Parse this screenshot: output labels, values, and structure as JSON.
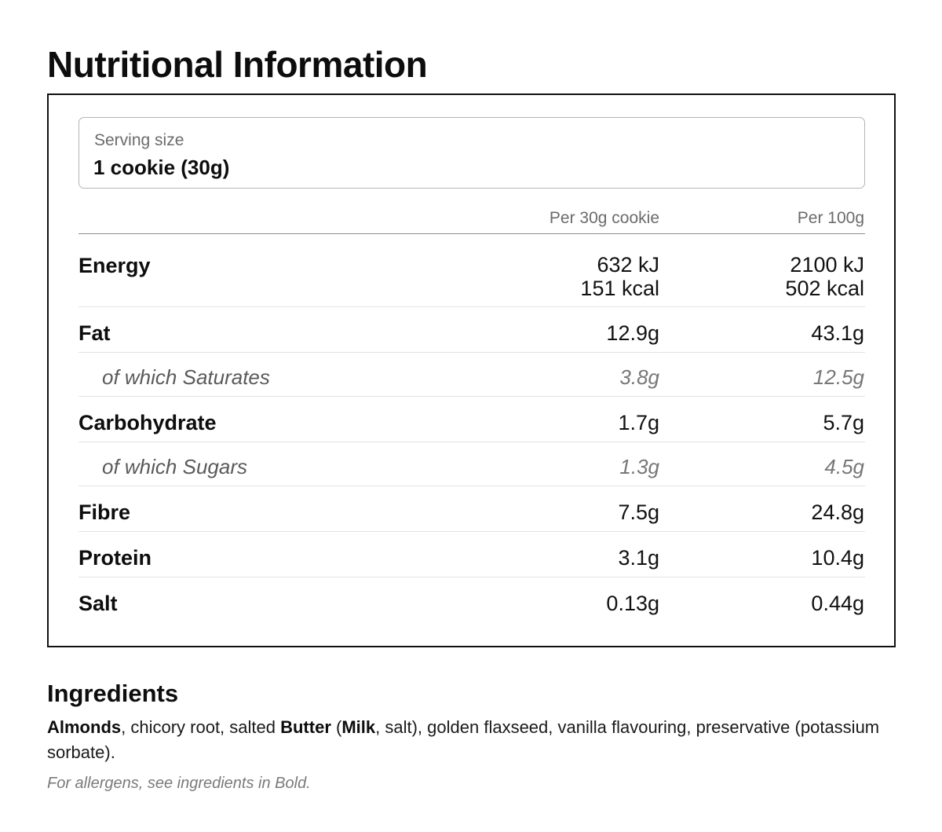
{
  "title": "Nutritional Information",
  "serving": {
    "label": "Serving size",
    "value": "1 cookie (30g)"
  },
  "columns": {
    "per_serving": "Per 30g cookie",
    "per_100g": "Per 100g"
  },
  "rows": [
    {
      "name": "Energy",
      "per_serving": "632 kJ",
      "per_serving_2": "151 kcal",
      "per_100g": "2100 kJ",
      "per_100g_2": "502 kcal",
      "sub": false
    },
    {
      "name": "Fat",
      "per_serving": "12.9g",
      "per_100g": "43.1g",
      "sub": false
    },
    {
      "name": "of which Saturates",
      "per_serving": "3.8g",
      "per_100g": "12.5g",
      "sub": true
    },
    {
      "name": "Carbohydrate",
      "per_serving": "1.7g",
      "per_100g": "5.7g",
      "sub": false
    },
    {
      "name": "of which Sugars",
      "per_serving": "1.3g",
      "per_100g": "4.5g",
      "sub": true
    },
    {
      "name": "Fibre",
      "per_serving": "7.5g",
      "per_100g": "24.8g",
      "sub": false
    },
    {
      "name": "Protein",
      "per_serving": "3.1g",
      "per_100g": "10.4g",
      "sub": false
    },
    {
      "name": "Salt",
      "per_serving": "0.13g",
      "per_100g": "0.44g",
      "sub": false
    }
  ],
  "ingredients": {
    "title": "Ingredients",
    "parts": [
      {
        "text": "Almonds",
        "bold": true
      },
      {
        "text": ", chicory root, salted ",
        "bold": false
      },
      {
        "text": "Butter",
        "bold": true
      },
      {
        "text": " (",
        "bold": false
      },
      {
        "text": "Milk",
        "bold": true
      },
      {
        "text": ", salt), golden flaxseed, vanilla flavouring, preservative (potassium sorbate).",
        "bold": false
      }
    ],
    "allergen_note": "For allergens, see ingredients in Bold."
  }
}
